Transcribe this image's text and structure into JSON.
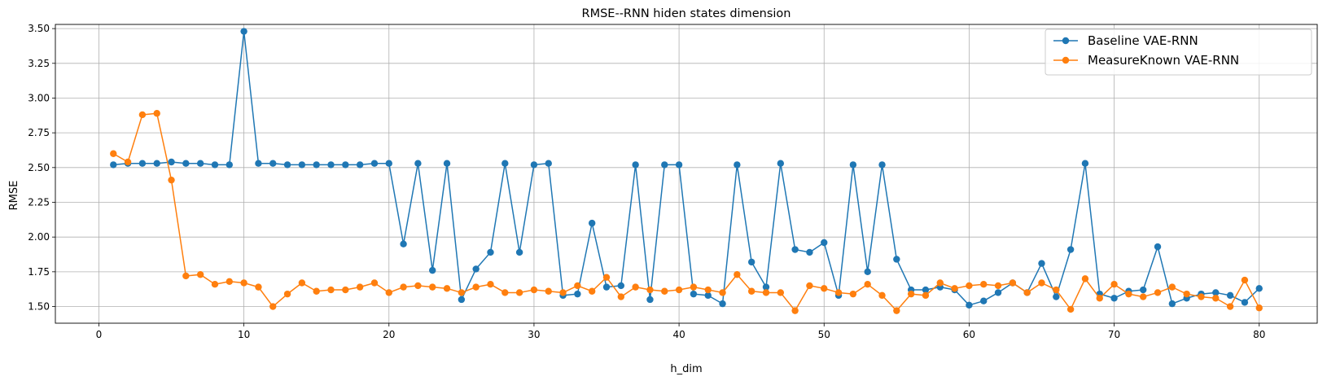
{
  "chart_data": {
    "type": "line",
    "title": "RMSE--RNN hiden states dimension",
    "xlabel": "h_dim",
    "ylabel": "RMSE",
    "xlim": [
      -3,
      84
    ],
    "ylim": [
      1.38,
      3.53
    ],
    "xticks": [
      0,
      10,
      20,
      30,
      40,
      50,
      60,
      70,
      80
    ],
    "xtick_labels": [
      "0",
      "10",
      "20",
      "30",
      "40",
      "50",
      "60",
      "70",
      "80"
    ],
    "yticks": [
      1.5,
      1.75,
      2.0,
      2.25,
      2.5,
      2.75,
      3.0,
      3.25,
      3.5
    ],
    "ytick_labels": [
      "1.50",
      "1.75",
      "2.00",
      "2.25",
      "2.50",
      "2.75",
      "3.00",
      "3.25",
      "3.50"
    ],
    "grid": true,
    "legend_position": "top-right",
    "x": [
      1,
      2,
      3,
      4,
      5,
      6,
      7,
      8,
      9,
      10,
      11,
      12,
      13,
      14,
      15,
      16,
      17,
      18,
      19,
      20,
      21,
      22,
      23,
      24,
      25,
      26,
      27,
      28,
      29,
      30,
      31,
      32,
      33,
      34,
      35,
      36,
      37,
      38,
      39,
      40,
      41,
      42,
      43,
      44,
      45,
      46,
      47,
      48,
      49,
      50,
      51,
      52,
      53,
      54,
      55,
      56,
      57,
      58,
      59,
      60,
      61,
      62,
      63,
      64,
      65,
      66,
      67,
      68,
      69,
      70,
      71,
      72,
      73,
      74,
      75,
      76,
      77,
      78,
      79,
      80
    ],
    "series": [
      {
        "name": "Baseline VAE-RNN",
        "color": "#1f77b4",
        "values": [
          2.52,
          2.53,
          2.53,
          2.53,
          2.54,
          2.53,
          2.53,
          2.52,
          2.52,
          3.48,
          2.53,
          2.53,
          2.52,
          2.52,
          2.52,
          2.52,
          2.52,
          2.52,
          2.53,
          2.53,
          1.95,
          2.53,
          1.76,
          2.53,
          1.55,
          1.77,
          1.89,
          2.53,
          1.89,
          2.52,
          2.53,
          1.58,
          1.59,
          2.1,
          1.64,
          1.65,
          2.52,
          1.55,
          2.52,
          2.52,
          1.59,
          1.58,
          1.52,
          2.52,
          1.82,
          1.64,
          2.53,
          1.91,
          1.89,
          1.96,
          1.58,
          2.52,
          1.75,
          2.52,
          1.84,
          1.62,
          1.62,
          1.64,
          1.62,
          1.51,
          1.54,
          1.6,
          1.67,
          1.6,
          1.81,
          1.57,
          1.91,
          2.53,
          1.59,
          1.56,
          1.61,
          1.62,
          1.93,
          1.52,
          1.56,
          1.59,
          1.6,
          1.58,
          1.53,
          1.63
        ]
      },
      {
        "name": "MeasureKnown VAE-RNN",
        "color": "#ff7f0e",
        "values": [
          2.6,
          2.54,
          2.88,
          2.89,
          2.41,
          1.72,
          1.73,
          1.66,
          1.68,
          1.67,
          1.64,
          1.5,
          1.59,
          1.67,
          1.61,
          1.62,
          1.62,
          1.64,
          1.67,
          1.6,
          1.64,
          1.65,
          1.64,
          1.63,
          1.6,
          1.64,
          1.66,
          1.6,
          1.6,
          1.62,
          1.61,
          1.6,
          1.65,
          1.61,
          1.71,
          1.57,
          1.64,
          1.62,
          1.61,
          1.62,
          1.64,
          1.62,
          1.6,
          1.73,
          1.61,
          1.6,
          1.6,
          1.47,
          1.65,
          1.63,
          1.6,
          1.59,
          1.66,
          1.58,
          1.47,
          1.59,
          1.58,
          1.67,
          1.63,
          1.65,
          1.66,
          1.65,
          1.67,
          1.6,
          1.67,
          1.62,
          1.48,
          1.7,
          1.56,
          1.66,
          1.59,
          1.57,
          1.6,
          1.64,
          1.59,
          1.57,
          1.56,
          1.5,
          1.69,
          1.49
        ]
      }
    ]
  }
}
